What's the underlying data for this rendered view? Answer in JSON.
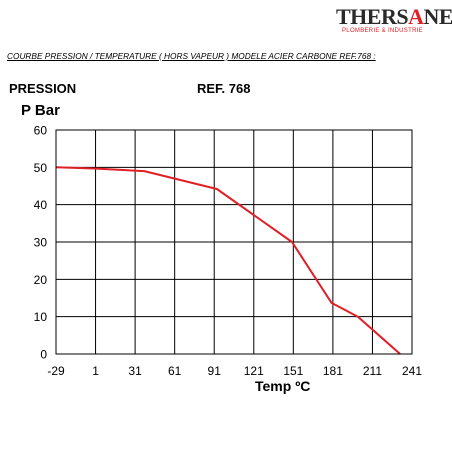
{
  "logo": {
    "text_main": "THERSANE",
    "text_sub": "PLOMBERIE & INDUSTRIE"
  },
  "heading": "COURBE PRESSION / TEMPERATURE ( HORS VAPEUR ) MODELE ACIER CARBONE REF.768 :",
  "labels": {
    "pression": "PRESSION",
    "ref": "REF. 768"
  },
  "colors": {
    "line": "#e01f26",
    "grid": "#000000",
    "logo_accent": "#e01f26"
  },
  "chart_data": {
    "type": "line",
    "ylabel": "P Bar",
    "xlabel": "Temp ºC",
    "x_ticks": [
      "-29",
      "1",
      "31",
      "61",
      "91",
      "121",
      "151",
      "181",
      "211",
      "241"
    ],
    "y_ticks": [
      "0",
      "10",
      "20",
      "30",
      "40",
      "50",
      "60"
    ],
    "xlim": [
      -29,
      241
    ],
    "ylim": [
      0,
      60
    ],
    "grid": true,
    "series": [
      {
        "x": [
          -29,
          0,
          20,
          38,
          93,
          150,
          180,
          200,
          232
        ],
        "y": [
          50,
          49.7,
          49.3,
          49,
          44.2,
          30,
          13.7,
          10,
          0
        ]
      }
    ]
  }
}
